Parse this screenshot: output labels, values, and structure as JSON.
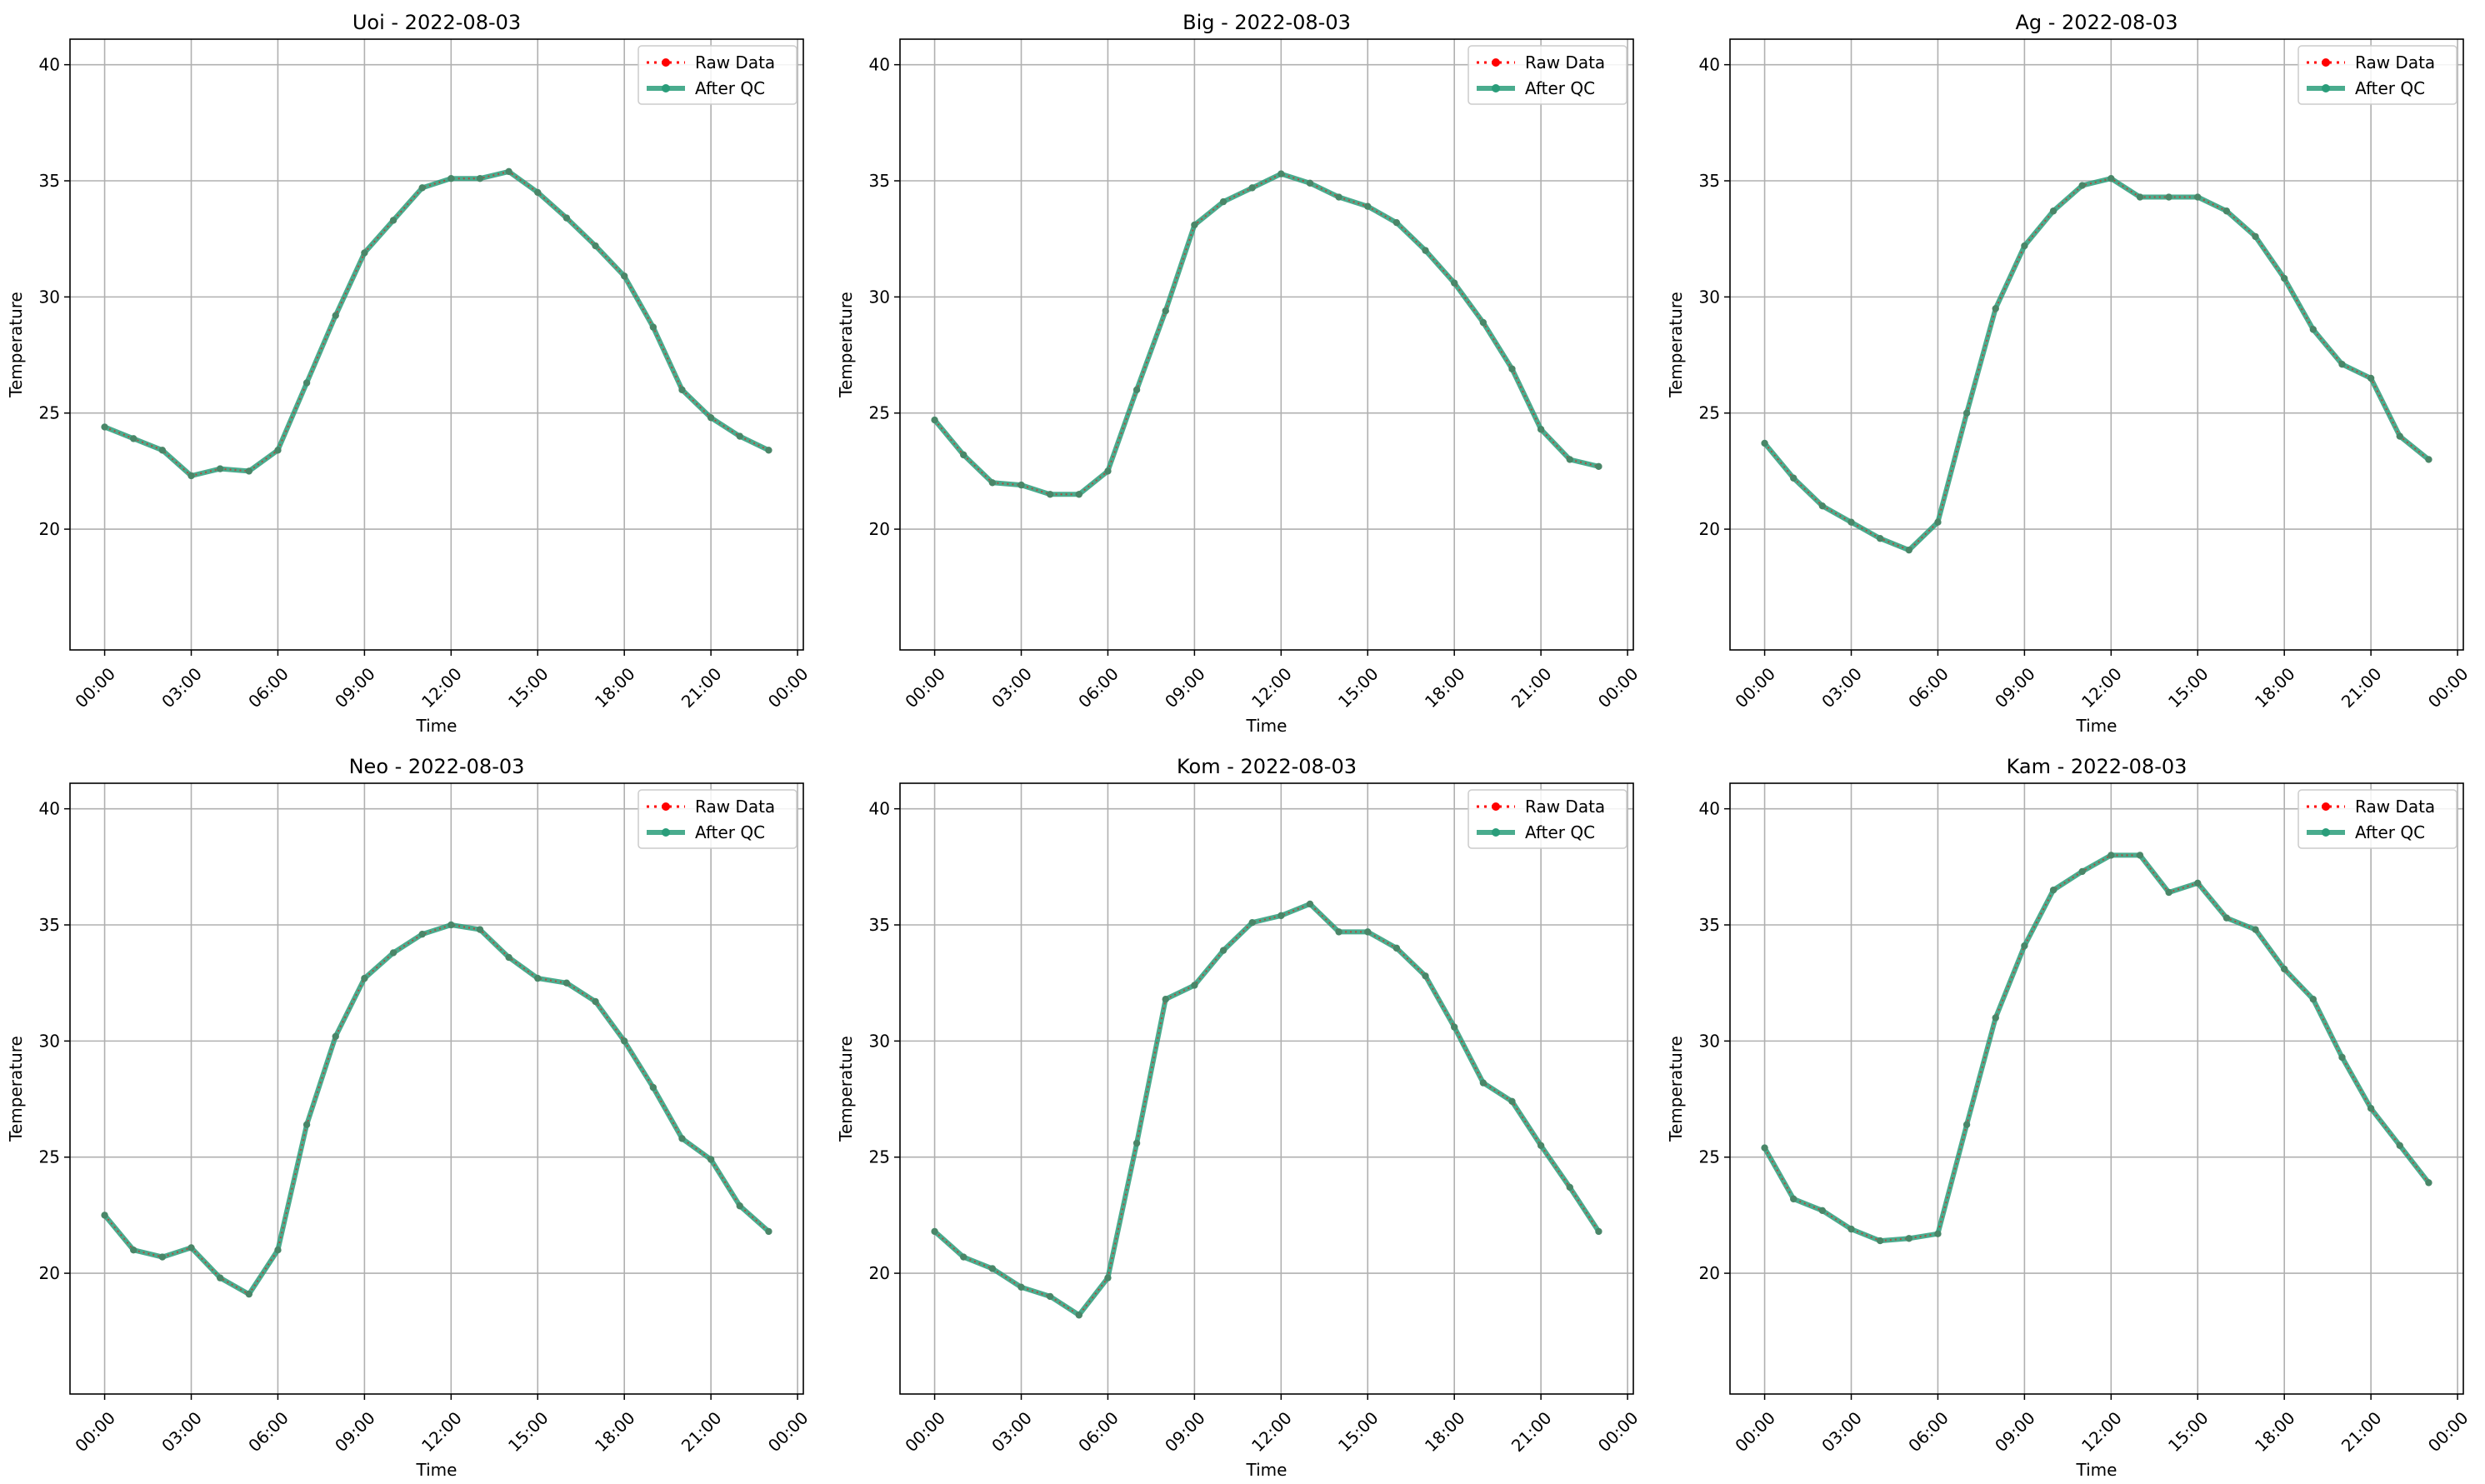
{
  "figure": {
    "legend": {
      "raw_label": "Raw Data",
      "qc_label": "After QC",
      "placement": "top-right"
    },
    "colors": {
      "raw": "#ff0000",
      "qc": "#2a9d7a",
      "grid": "#b0b0b0",
      "axes": "#000000"
    }
  },
  "chart_data": [
    {
      "type": "line",
      "title": "Uoi - 2022-08-03",
      "xlabel": "Time",
      "ylabel": "Temperature",
      "ylim": [
        14.8,
        41.1
      ],
      "xlim": [
        -1.2,
        24.2
      ],
      "x_unit": "hours",
      "x_ticks": [
        "00:00",
        "03:00",
        "06:00",
        "09:00",
        "12:00",
        "15:00",
        "18:00",
        "21:00",
        "00:00"
      ],
      "y_ticks": [
        20,
        25,
        30,
        35,
        40
      ],
      "grid": true,
      "series": [
        {
          "name": "Raw Data",
          "x": [
            0,
            1,
            2,
            3,
            4,
            5,
            6,
            7,
            8,
            9,
            10,
            11,
            12,
            13,
            14,
            15,
            16,
            17,
            18,
            19,
            20,
            21,
            22,
            23
          ],
          "values": [
            24.4,
            23.9,
            23.4,
            22.3,
            22.6,
            22.5,
            23.4,
            26.3,
            29.2,
            31.9,
            33.3,
            34.7,
            35.1,
            35.1,
            35.4,
            34.5,
            33.4,
            32.2,
            30.9,
            28.7,
            26.0,
            24.8,
            24.0,
            23.4
          ]
        },
        {
          "name": "After QC",
          "x": [
            0,
            1,
            2,
            3,
            4,
            5,
            6,
            7,
            8,
            9,
            10,
            11,
            12,
            13,
            14,
            15,
            16,
            17,
            18,
            19,
            20,
            21,
            22,
            23
          ],
          "values": [
            24.4,
            23.9,
            23.4,
            22.3,
            22.6,
            22.5,
            23.4,
            26.3,
            29.2,
            31.9,
            33.3,
            34.7,
            35.1,
            35.1,
            35.4,
            34.5,
            33.4,
            32.2,
            30.9,
            28.7,
            26.0,
            24.8,
            24.0,
            23.4
          ]
        }
      ]
    },
    {
      "type": "line",
      "title": "Big - 2022-08-03",
      "xlabel": "Time",
      "ylabel": "Temperature",
      "ylim": [
        14.8,
        41.1
      ],
      "xlim": [
        -1.2,
        24.2
      ],
      "x_unit": "hours",
      "x_ticks": [
        "00:00",
        "03:00",
        "06:00",
        "09:00",
        "12:00",
        "15:00",
        "18:00",
        "21:00",
        "00:00"
      ],
      "y_ticks": [
        20,
        25,
        30,
        35,
        40
      ],
      "grid": true,
      "series": [
        {
          "name": "Raw Data",
          "x": [
            0,
            1,
            2,
            3,
            4,
            5,
            6,
            7,
            8,
            9,
            10,
            11,
            12,
            13,
            14,
            15,
            16,
            17,
            18,
            19,
            20,
            21,
            22,
            23
          ],
          "values": [
            24.7,
            23.2,
            22.0,
            21.9,
            21.5,
            21.5,
            22.5,
            26.0,
            29.4,
            33.1,
            34.1,
            34.7,
            35.3,
            34.9,
            34.3,
            33.9,
            33.2,
            32.0,
            30.6,
            28.9,
            26.9,
            24.3,
            23.0,
            22.7
          ]
        },
        {
          "name": "After QC",
          "x": [
            0,
            1,
            2,
            3,
            4,
            5,
            6,
            7,
            8,
            9,
            10,
            11,
            12,
            13,
            14,
            15,
            16,
            17,
            18,
            19,
            20,
            21,
            22,
            23
          ],
          "values": [
            24.7,
            23.2,
            22.0,
            21.9,
            21.5,
            21.5,
            22.5,
            26.0,
            29.4,
            33.1,
            34.1,
            34.7,
            35.3,
            34.9,
            34.3,
            33.9,
            33.2,
            32.0,
            30.6,
            28.9,
            26.9,
            24.3,
            23.0,
            22.7
          ]
        }
      ]
    },
    {
      "type": "line",
      "title": "Ag - 2022-08-03",
      "xlabel": "Time",
      "ylabel": "Temperature",
      "ylim": [
        14.8,
        41.1
      ],
      "xlim": [
        -1.2,
        24.2
      ],
      "x_unit": "hours",
      "x_ticks": [
        "00:00",
        "03:00",
        "06:00",
        "09:00",
        "12:00",
        "15:00",
        "18:00",
        "21:00",
        "00:00"
      ],
      "y_ticks": [
        20,
        25,
        30,
        35,
        40
      ],
      "grid": true,
      "series": [
        {
          "name": "Raw Data",
          "x": [
            0,
            1,
            2,
            3,
            4,
            5,
            6,
            7,
            8,
            9,
            10,
            11,
            12,
            13,
            14,
            15,
            16,
            17,
            18,
            19,
            20,
            21,
            22,
            23
          ],
          "values": [
            23.7,
            22.2,
            21.0,
            20.3,
            19.6,
            19.1,
            20.3,
            25.0,
            29.5,
            32.2,
            33.7,
            34.8,
            35.1,
            34.3,
            34.3,
            34.3,
            33.7,
            32.6,
            30.8,
            28.6,
            27.1,
            26.5,
            24.0,
            23.0
          ]
        },
        {
          "name": "After QC",
          "x": [
            0,
            1,
            2,
            3,
            4,
            5,
            6,
            7,
            8,
            9,
            10,
            11,
            12,
            13,
            14,
            15,
            16,
            17,
            18,
            19,
            20,
            21,
            22,
            23
          ],
          "values": [
            23.7,
            22.2,
            21.0,
            20.3,
            19.6,
            19.1,
            20.3,
            25.0,
            29.5,
            32.2,
            33.7,
            34.8,
            35.1,
            34.3,
            34.3,
            34.3,
            33.7,
            32.6,
            30.8,
            28.6,
            27.1,
            26.5,
            24.0,
            23.0
          ]
        }
      ]
    },
    {
      "type": "line",
      "title": "Neo - 2022-08-03",
      "xlabel": "Time",
      "ylabel": "Temperature",
      "ylim": [
        14.8,
        41.1
      ],
      "xlim": [
        -1.2,
        24.2
      ],
      "x_unit": "hours",
      "x_ticks": [
        "00:00",
        "03:00",
        "06:00",
        "09:00",
        "12:00",
        "15:00",
        "18:00",
        "21:00",
        "00:00"
      ],
      "y_ticks": [
        20,
        25,
        30,
        35,
        40
      ],
      "grid": true,
      "series": [
        {
          "name": "Raw Data",
          "x": [
            0,
            1,
            2,
            3,
            4,
            5,
            6,
            7,
            8,
            9,
            10,
            11,
            12,
            13,
            14,
            15,
            16,
            17,
            18,
            19,
            20,
            21,
            22,
            23
          ],
          "values": [
            22.5,
            21.0,
            20.7,
            21.1,
            19.8,
            19.1,
            21.0,
            26.4,
            30.2,
            32.7,
            33.8,
            34.6,
            35.0,
            34.8,
            33.6,
            32.7,
            32.5,
            31.7,
            30.0,
            28.0,
            25.8,
            24.9,
            22.9,
            21.8
          ]
        },
        {
          "name": "After QC",
          "x": [
            0,
            1,
            2,
            3,
            4,
            5,
            6,
            7,
            8,
            9,
            10,
            11,
            12,
            13,
            14,
            15,
            16,
            17,
            18,
            19,
            20,
            21,
            22,
            23
          ],
          "values": [
            22.5,
            21.0,
            20.7,
            21.1,
            19.8,
            19.1,
            21.0,
            26.4,
            30.2,
            32.7,
            33.8,
            34.6,
            35.0,
            34.8,
            33.6,
            32.7,
            32.5,
            31.7,
            30.0,
            28.0,
            25.8,
            24.9,
            22.9,
            21.8
          ]
        }
      ]
    },
    {
      "type": "line",
      "title": "Kom - 2022-08-03",
      "xlabel": "Time",
      "ylabel": "Temperature",
      "ylim": [
        14.8,
        41.1
      ],
      "xlim": [
        -1.2,
        24.2
      ],
      "x_unit": "hours",
      "x_ticks": [
        "00:00",
        "03:00",
        "06:00",
        "09:00",
        "12:00",
        "15:00",
        "18:00",
        "21:00",
        "00:00"
      ],
      "y_ticks": [
        20,
        25,
        30,
        35,
        40
      ],
      "grid": true,
      "series": [
        {
          "name": "Raw Data",
          "x": [
            0,
            1,
            2,
            3,
            4,
            5,
            6,
            7,
            8,
            9,
            10,
            11,
            12,
            13,
            14,
            15,
            16,
            17,
            18,
            19,
            20,
            21,
            22,
            23
          ],
          "values": [
            21.8,
            20.7,
            20.2,
            19.4,
            19.0,
            18.2,
            19.8,
            25.6,
            31.8,
            32.4,
            33.9,
            35.1,
            35.4,
            35.9,
            34.7,
            34.7,
            34.0,
            32.8,
            30.6,
            28.2,
            27.4,
            25.5,
            23.7,
            21.8
          ]
        },
        {
          "name": "After QC",
          "x": [
            0,
            1,
            2,
            3,
            4,
            5,
            6,
            7,
            8,
            9,
            10,
            11,
            12,
            13,
            14,
            15,
            16,
            17,
            18,
            19,
            20,
            21,
            22,
            23
          ],
          "values": [
            21.8,
            20.7,
            20.2,
            19.4,
            19.0,
            18.2,
            19.8,
            25.6,
            31.8,
            32.4,
            33.9,
            35.1,
            35.4,
            35.9,
            34.7,
            34.7,
            34.0,
            32.8,
            30.6,
            28.2,
            27.4,
            25.5,
            23.7,
            21.8
          ]
        }
      ]
    },
    {
      "type": "line",
      "title": "Kam - 2022-08-03",
      "xlabel": "Time",
      "ylabel": "Temperature",
      "ylim": [
        14.8,
        41.1
      ],
      "xlim": [
        -1.2,
        24.2
      ],
      "x_unit": "hours",
      "x_ticks": [
        "00:00",
        "03:00",
        "06:00",
        "09:00",
        "12:00",
        "15:00",
        "18:00",
        "21:00",
        "00:00"
      ],
      "y_ticks": [
        20,
        25,
        30,
        35,
        40
      ],
      "grid": true,
      "series": [
        {
          "name": "Raw Data",
          "x": [
            0,
            1,
            2,
            3,
            4,
            5,
            6,
            7,
            8,
            9,
            10,
            11,
            12,
            13,
            14,
            15,
            16,
            17,
            18,
            19,
            20,
            21,
            22,
            23
          ],
          "values": [
            25.4,
            23.2,
            22.7,
            21.9,
            21.4,
            21.5,
            21.7,
            26.4,
            31.0,
            34.1,
            36.5,
            37.3,
            38.0,
            38.0,
            36.4,
            36.8,
            35.3,
            34.8,
            33.1,
            31.8,
            29.3,
            27.1,
            25.5,
            23.9
          ]
        },
        {
          "name": "After QC",
          "x": [
            0,
            1,
            2,
            3,
            4,
            5,
            6,
            7,
            8,
            9,
            10,
            11,
            12,
            13,
            14,
            15,
            16,
            17,
            18,
            19,
            20,
            21,
            22,
            23
          ],
          "values": [
            25.4,
            23.2,
            22.7,
            21.9,
            21.4,
            21.5,
            21.7,
            26.4,
            31.0,
            34.1,
            36.5,
            37.3,
            38.0,
            38.0,
            36.4,
            36.8,
            35.3,
            34.8,
            33.1,
            31.8,
            29.3,
            27.1,
            25.5,
            23.9
          ]
        }
      ]
    }
  ]
}
